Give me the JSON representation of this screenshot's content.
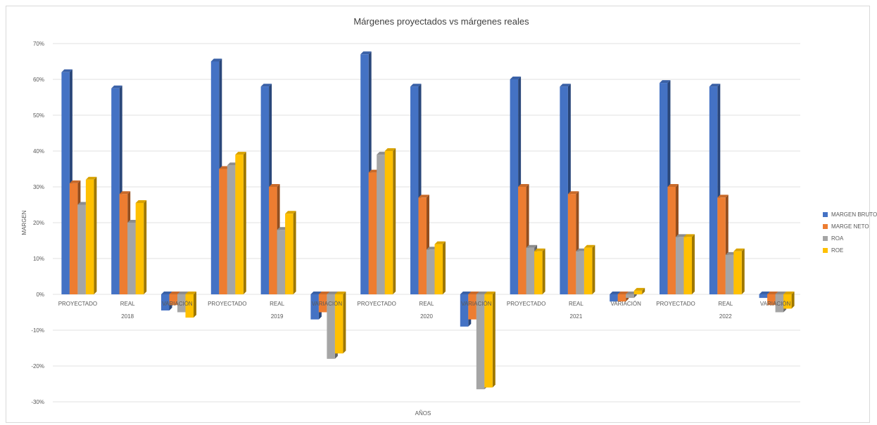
{
  "chart_data": {
    "type": "bar",
    "style": "3d-clustered-column",
    "title": "Márgenes proyectados vs márgenes reales",
    "xlabel": "AÑOS",
    "ylabel": "MARGEN",
    "ylim": [
      -0.3,
      0.7
    ],
    "yticks": [
      "-30%",
      "-20%",
      "-10%",
      "0%",
      "10%",
      "20%",
      "30%",
      "40%",
      "50%",
      "60%",
      "70%"
    ],
    "grid": true,
    "legend_position": "right",
    "groups": [
      {
        "year": "2018",
        "categories": [
          "PROYECTADO",
          "REAL",
          "VARIACIÓN"
        ]
      },
      {
        "year": "2019",
        "categories": [
          "PROYECTADO",
          "REAL",
          "VARIACIÓN"
        ]
      },
      {
        "year": "2020",
        "categories": [
          "PROYECTADO",
          "REAL",
          "VARIACIÓN"
        ]
      },
      {
        "year": "2021",
        "categories": [
          "PROYECTADO",
          "REAL",
          "VARIACIÓN"
        ]
      },
      {
        "year": "2022",
        "categories": [
          "PROYECTADO",
          "REAL",
          "VARIACIÓN"
        ]
      }
    ],
    "series": [
      {
        "name": "MARGEN BRUTO",
        "color": "#4472C4",
        "values": [
          0.62,
          0.575,
          -0.045,
          0.65,
          0.58,
          -0.07,
          0.67,
          0.58,
          -0.09,
          0.6,
          0.58,
          -0.02,
          0.59,
          0.58,
          -0.01
        ]
      },
      {
        "name": "MARGE NETO",
        "color": "#ED7D31",
        "values": [
          0.31,
          0.28,
          -0.03,
          0.35,
          0.3,
          -0.05,
          0.34,
          0.27,
          -0.07,
          0.3,
          0.28,
          -0.02,
          0.3,
          0.27,
          -0.03
        ]
      },
      {
        "name": "ROA",
        "color": "#A5A5A5",
        "values": [
          0.25,
          0.2,
          -0.05,
          0.36,
          0.18,
          -0.18,
          0.39,
          0.125,
          -0.265,
          0.13,
          0.12,
          -0.01,
          0.16,
          0.11,
          -0.05
        ]
      },
      {
        "name": "ROE",
        "color": "#FFC000",
        "values": [
          0.32,
          0.255,
          -0.065,
          0.39,
          0.225,
          -0.165,
          0.4,
          0.14,
          -0.26,
          0.12,
          0.13,
          0.01,
          0.16,
          0.12,
          -0.04
        ]
      }
    ]
  }
}
